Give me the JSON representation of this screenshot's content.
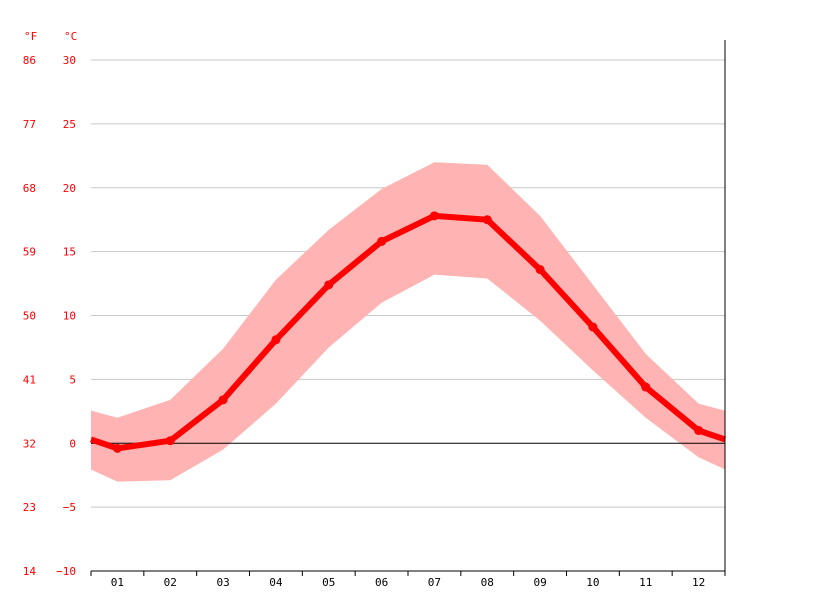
{
  "chart_data": {
    "type": "line",
    "title": "",
    "unit_labels": {
      "fahrenheit": "°F",
      "celsius": "°C"
    },
    "categories": [
      "01",
      "02",
      "03",
      "04",
      "05",
      "06",
      "07",
      "08",
      "09",
      "10",
      "11",
      "12"
    ],
    "ylim": [
      -10,
      30
    ],
    "yticks_celsius": [
      30,
      25,
      20,
      15,
      10,
      5,
      0,
      -5,
      -10
    ],
    "yticks_celsius_labels": [
      "30",
      "25",
      "20",
      "15",
      "10",
      "5",
      "0",
      "−5",
      "−10"
    ],
    "yticks_fahrenheit_labels": [
      "86",
      "77",
      "68",
      "59",
      "50",
      "41",
      "32",
      "23",
      "14"
    ],
    "grid": true,
    "series": [
      {
        "role": "mean",
        "values": [
          -0.4,
          0.2,
          3.4,
          8.1,
          12.4,
          15.8,
          17.8,
          17.5,
          13.6,
          9.1,
          4.4,
          1.0
        ]
      },
      {
        "role": "max",
        "values": [
          2.0,
          3.4,
          7.4,
          12.8,
          16.7,
          19.9,
          22.0,
          21.8,
          17.8,
          12.4,
          7.0,
          3.1
        ]
      },
      {
        "role": "min",
        "values": [
          -3.0,
          -2.9,
          -0.5,
          3.1,
          7.5,
          11.0,
          13.2,
          12.9,
          9.6,
          5.7,
          2.0,
          -1.1
        ]
      }
    ],
    "colors": {
      "line": "#ff0000",
      "band": "#ffb3b3",
      "labels": "#ff0000",
      "grid": "#c8c8c8",
      "zero_line": "#000000"
    }
  }
}
